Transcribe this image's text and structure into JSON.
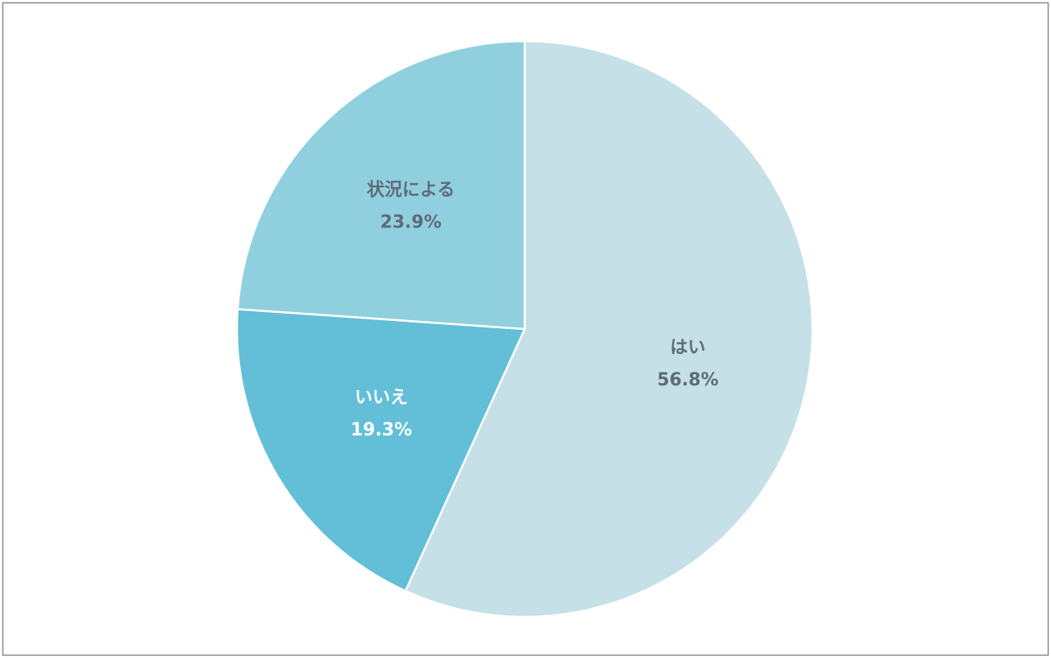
{
  "chart_data": {
    "type": "pie",
    "categories": [
      "はい",
      "いいえ",
      "状況による"
    ],
    "values": [
      56.8,
      19.3,
      23.9
    ],
    "value_labels": [
      "56.8%",
      "19.3%",
      "23.9%"
    ],
    "colors": [
      "#c5e0e6",
      "#62bfd7",
      "#90d0de"
    ],
    "label_colors": [
      "#5f6b7a",
      "#ffffff",
      "#5f6b7a"
    ]
  }
}
